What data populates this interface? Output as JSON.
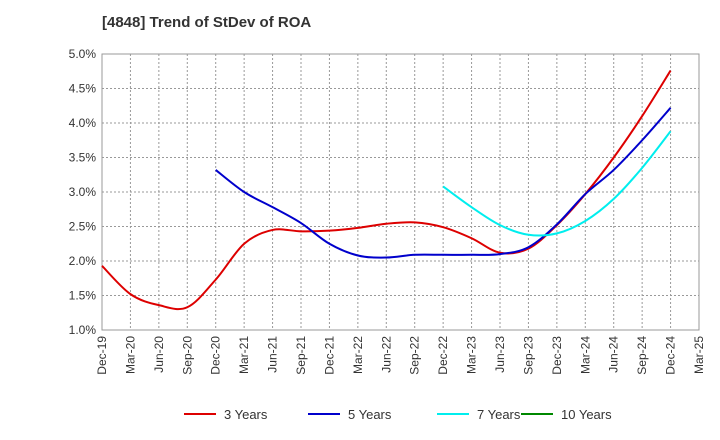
{
  "chart_data": {
    "type": "line",
    "title": "[4848]  Trend of StDev of ROA",
    "xlabel": "",
    "ylabel": "",
    "x_ticks": [
      "Dec-19",
      "Mar-20",
      "Jun-20",
      "Sep-20",
      "Dec-20",
      "Mar-21",
      "Jun-21",
      "Sep-21",
      "Dec-21",
      "Mar-22",
      "Jun-22",
      "Sep-22",
      "Dec-22",
      "Mar-23",
      "Jun-23",
      "Sep-23",
      "Dec-23",
      "Mar-24",
      "Jun-24",
      "Sep-24",
      "Dec-24",
      "Mar-25"
    ],
    "y_ticks": [
      "1.0%",
      "1.5%",
      "2.0%",
      "2.5%",
      "3.0%",
      "3.5%",
      "4.0%",
      "4.5%",
      "5.0%"
    ],
    "ylim": [
      1.0,
      5.0
    ],
    "grid": true,
    "legend_position": "bottom",
    "series": [
      {
        "name": "3 Years",
        "color": "#dd0000",
        "x": [
          "Dec-19",
          "Mar-20",
          "Jun-20",
          "Sep-20",
          "Dec-20",
          "Mar-21",
          "Jun-21",
          "Sep-21",
          "Dec-21",
          "Mar-22",
          "Jun-22",
          "Sep-22",
          "Dec-22",
          "Mar-23",
          "Jun-23",
          "Sep-23",
          "Dec-23",
          "Mar-24",
          "Jun-24",
          "Sep-24",
          "Dec-24"
        ],
        "values": [
          1.93,
          1.52,
          1.36,
          1.33,
          1.73,
          2.25,
          2.45,
          2.43,
          2.44,
          2.48,
          2.54,
          2.56,
          2.49,
          2.33,
          2.12,
          2.18,
          2.52,
          2.97,
          3.5,
          4.1,
          4.76
        ]
      },
      {
        "name": "5 Years",
        "color": "#0000cc",
        "x": [
          "Dec-20",
          "Mar-21",
          "Jun-21",
          "Sep-21",
          "Dec-21",
          "Mar-22",
          "Jun-22",
          "Sep-22",
          "Dec-22",
          "Mar-23",
          "Jun-23",
          "Sep-23",
          "Dec-23",
          "Mar-24",
          "Jun-24",
          "Sep-24",
          "Dec-24"
        ],
        "values": [
          3.32,
          3.0,
          2.78,
          2.55,
          2.25,
          2.08,
          2.05,
          2.09,
          2.09,
          2.09,
          2.1,
          2.2,
          2.53,
          2.97,
          3.32,
          3.75,
          4.22
        ]
      },
      {
        "name": "7 Years",
        "color": "#00eeee",
        "x": [
          "Dec-22",
          "Mar-23",
          "Jun-23",
          "Sep-23",
          "Dec-23",
          "Mar-24",
          "Jun-24",
          "Sep-24",
          "Dec-24"
        ],
        "values": [
          3.08,
          2.78,
          2.52,
          2.38,
          2.4,
          2.58,
          2.9,
          3.35,
          3.88
        ]
      },
      {
        "name": "10 Years",
        "color": "#008800",
        "x": [],
        "values": []
      }
    ]
  }
}
